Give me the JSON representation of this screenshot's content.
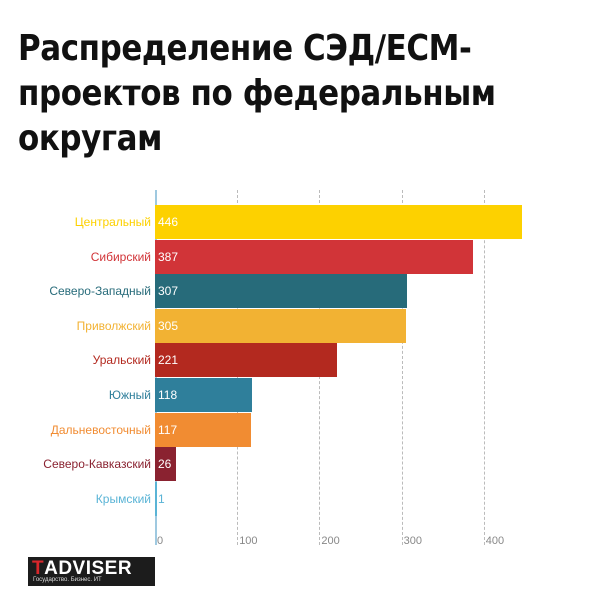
{
  "chart_data": {
    "type": "bar",
    "orientation": "horizontal",
    "title": "Распределение СЭД/ECM-проектов по федеральным округам",
    "categories": [
      "Центральный",
      "Сибирский",
      "Северо-Западный",
      "Приволжский",
      "Уральский",
      "Южный",
      "Дальневосточный",
      "Северо-Кавказский",
      "Крымский"
    ],
    "values": [
      446,
      387,
      307,
      305,
      221,
      118,
      117,
      26,
      1
    ],
    "colors": [
      "#fdd100",
      "#d13438",
      "#276b7a",
      "#f2b233",
      "#b3291f",
      "#2f7f9b",
      "#f18c32",
      "#8a2230",
      "#5ab4d6"
    ],
    "xlabel": "",
    "ylabel": "",
    "xlim": [
      0,
      450
    ],
    "xticks": [
      0,
      100,
      200,
      300,
      400
    ],
    "grid": true,
    "legend": "none"
  },
  "title_line1": "Распределение СЭД/ECM-",
  "title_line2": "проектов по федеральным",
  "title_line3": "округам",
  "logo": {
    "name_first": "T",
    "name_rest": "ADVISER",
    "tagline": "Государство. Бизнес. ИТ"
  }
}
